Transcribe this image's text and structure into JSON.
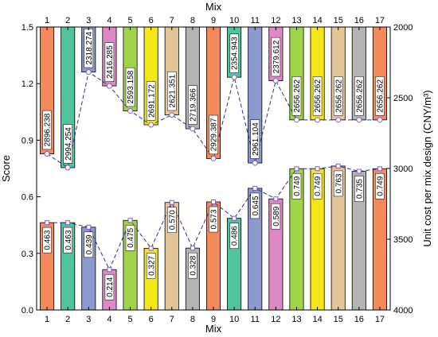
{
  "chart_data": {
    "type": "bar",
    "categories": [
      "1",
      "2",
      "3",
      "4",
      "5",
      "6",
      "7",
      "8",
      "9",
      "10",
      "11",
      "12",
      "13",
      "14",
      "15",
      "16",
      "17"
    ],
    "xlabel": "Mix",
    "x2label": "Mix",
    "ylabel": "Score",
    "y2label": "Unit cost per mix design (CNY/m³)",
    "ylim": [
      0,
      1.5
    ],
    "y2lim": [
      2000,
      4000
    ],
    "y2_inverted": true,
    "yticks": [
      "0.0",
      "0.3",
      "0.6",
      "0.9",
      "1.2",
      "1.5"
    ],
    "y2ticks": [
      "2000",
      "2500",
      "3000",
      "3500",
      "4000"
    ],
    "score": {
      "values": [
        0.463,
        0.463,
        0.439,
        0.214,
        0.475,
        0.327,
        0.57,
        0.328,
        0.573,
        0.486,
        0.645,
        0.589,
        0.749,
        0.749,
        0.763,
        0.735,
        0.749
      ],
      "labels": [
        "0.463",
        "0.463",
        "0.439",
        "0.214",
        "0.475",
        "0.327",
        "0.570",
        "0.328",
        "0.573",
        "0.486",
        "0.645",
        "0.589",
        "0.749",
        "0.749",
        "0.763",
        "0.735",
        "0.749"
      ]
    },
    "cost": {
      "values": [
        2896.238,
        2994.254,
        2318.274,
        2416.285,
        2593.158,
        2691.172,
        2621.351,
        2719.366,
        2929.387,
        2354.943,
        2961.104,
        2379.612,
        2656.262,
        2656.262,
        2656.262,
        2656.262,
        2656.262
      ],
      "labels": [
        "2896.238",
        "2994.254",
        "2318.274",
        "2416.285",
        "2593.158",
        "2691.172",
        "2621.351",
        "2719.366",
        "2929.387",
        "2354.943",
        "2961.104",
        "2379.612",
        "2656.262",
        "2656.262",
        "2656.262",
        "2656.262",
        "2656.262"
      ]
    },
    "colors": [
      "#f4895b",
      "#52c39c",
      "#8c99cc",
      "#df88c6",
      "#9fd44a",
      "#f5e617",
      "#e4c597",
      "#b3b3b3",
      "#f4895b",
      "#52c39c",
      "#8c99cc",
      "#df88c6",
      "#9fd44a",
      "#f5e617",
      "#e4c597",
      "#b3b3b3",
      "#f4895b"
    ],
    "line_color": "#2b2b9e",
    "marker_color": "#8a5bc9"
  }
}
